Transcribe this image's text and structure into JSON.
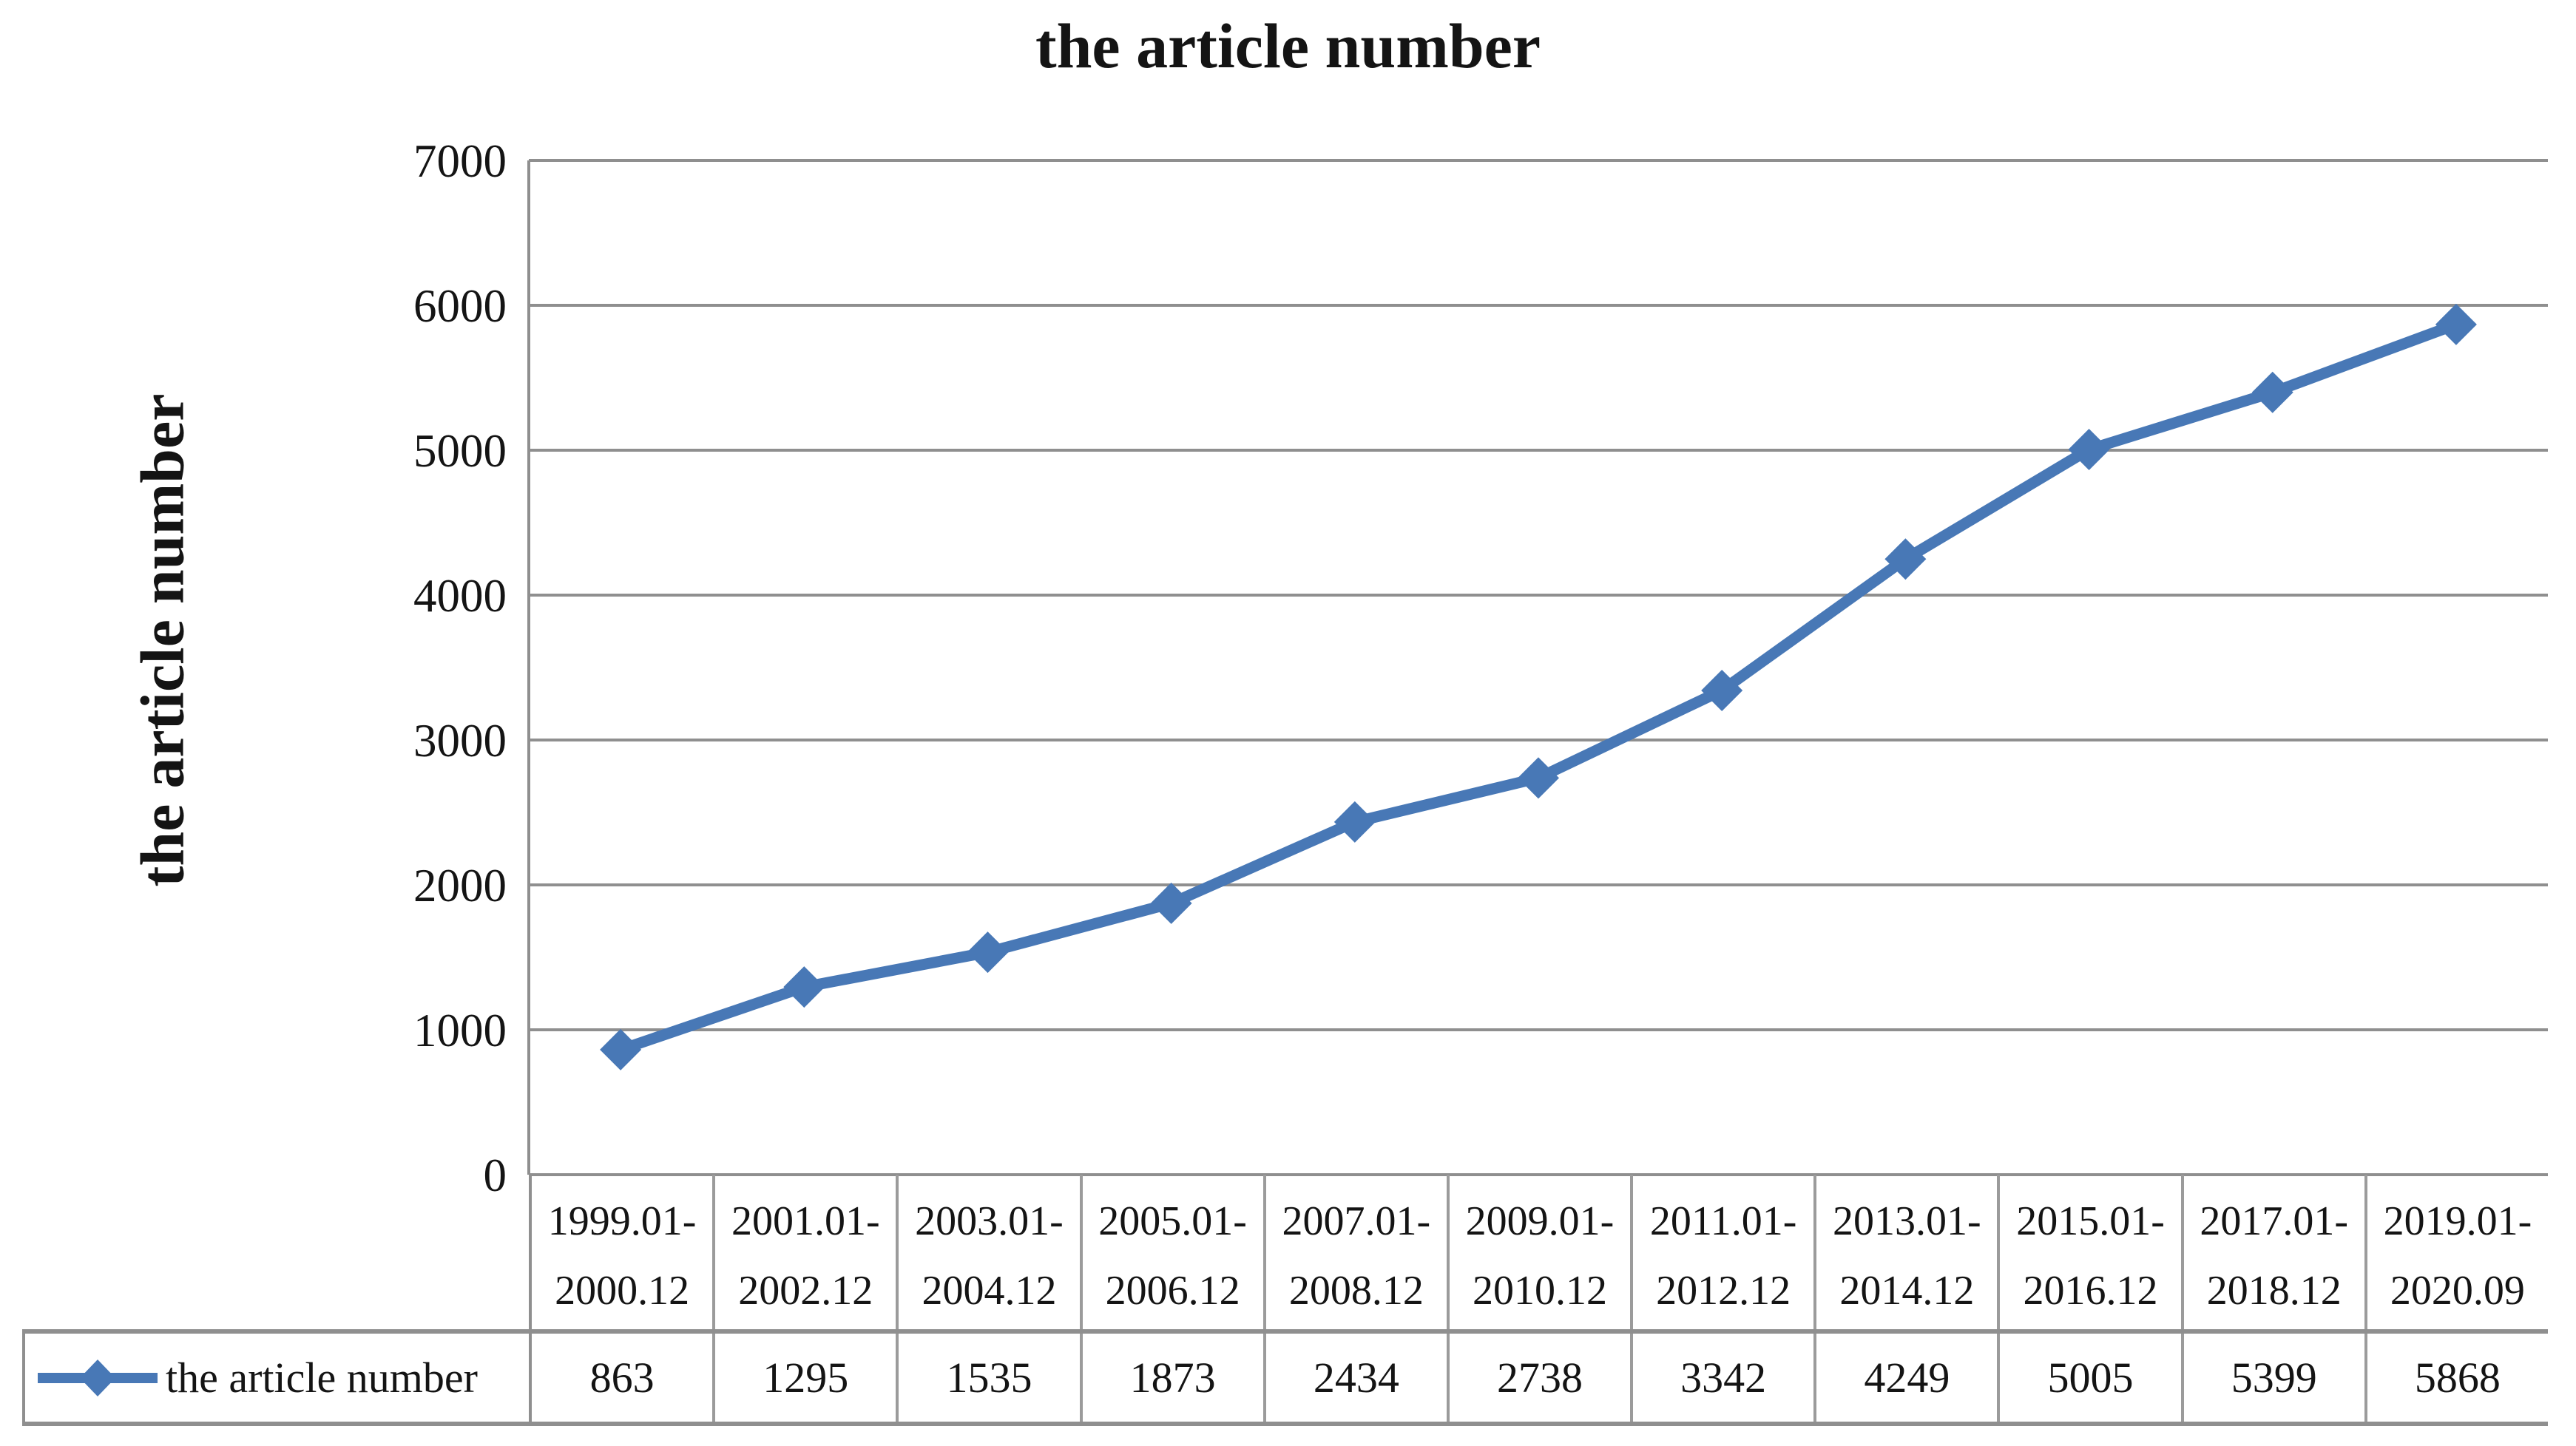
{
  "chart_data": {
    "type": "line",
    "title": "the article number",
    "xlabel": "",
    "ylabel": "the article number",
    "legend": "the article number",
    "legend_position": "bottom-table",
    "categories": [
      "1999.01-2000.12",
      "2001.01-2002.12",
      "2003.01-2004.12",
      "2005.01-2006.12",
      "2007.01-2008.12",
      "2009.01-2010.12",
      "2011.01-2012.12",
      "2013.01-2014.12",
      "2015.01-2016.12",
      "2017.01-2018.12",
      "2019.01-2020.09"
    ],
    "values": [
      863,
      1295,
      1535,
      1873,
      2434,
      2738,
      3342,
      4249,
      5005,
      5399,
      5868
    ],
    "ylim": [
      0,
      7000
    ],
    "yticks": [
      0,
      1000,
      2000,
      3000,
      4000,
      5000,
      6000,
      7000
    ],
    "grid": "horizontal",
    "marker": "diamond",
    "series_color": "#4878B6",
    "axis_color": "#8F8F8F",
    "cell_border_color": "#9B9B9B",
    "text_color": "#141414"
  }
}
